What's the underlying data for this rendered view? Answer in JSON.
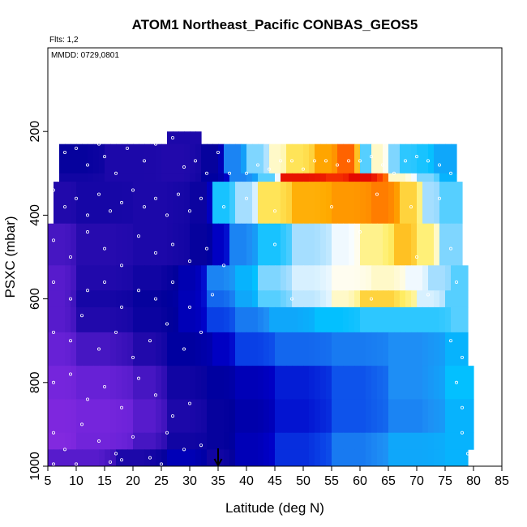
{
  "chart_data": {
    "type": "heatmap",
    "title": "ATOM1 Northeast_Pacific CONBAS_GEOS5",
    "notes": [
      "Flts: 1,2",
      "MMDD: 0729,0801"
    ],
    "xlabel": "Latitude (deg N)",
    "ylabel": "PSXC (mbar)",
    "xlim": [
      5,
      85
    ],
    "ylim": [
      1000,
      0
    ],
    "xticks": [
      "5",
      "10",
      "15",
      "20",
      "25",
      "30",
      "35",
      "40",
      "45",
      "50",
      "55",
      "60",
      "65",
      "70",
      "75",
      "80",
      "85"
    ],
    "yticks": [
      "200",
      "400",
      "600",
      "800",
      "1000"
    ],
    "grid": false,
    "legend": "none",
    "colors": {
      "axis": "#000000",
      "background": "#ffffff",
      "markers": "#ffffff",
      "arrow": "#000000"
    },
    "arrow_marker_latitude": 35,
    "palette_stops": [
      "#8a2be2",
      "#6a22d8",
      "#2a0cb0",
      "#00009a",
      "#0000c8",
      "#0a44e8",
      "#1e8ff5",
      "#00bfff",
      "#9fdcff",
      "#ffffff",
      "#ffee66",
      "#ffaa00",
      "#ff4400",
      "#e00000"
    ],
    "pressure_bands": [
      {
        "p_top": 200,
        "p_bot": 230,
        "cells": [
          [
            26,
            32,
            0.18
          ]
        ]
      },
      {
        "p_top": 230,
        "p_bot": 300,
        "cells": [
          [
            7,
            15,
            0.22
          ],
          [
            15,
            25,
            0.18
          ],
          [
            25,
            32,
            0.17
          ],
          [
            32,
            36,
            0.22
          ],
          [
            36,
            40,
            0.45
          ],
          [
            40,
            44,
            0.6
          ],
          [
            44,
            47,
            0.72
          ],
          [
            47,
            52,
            0.78
          ],
          [
            52,
            56,
            0.85
          ],
          [
            56,
            60,
            0.9
          ],
          [
            60,
            62,
            0.58
          ],
          [
            62,
            65,
            0.72
          ],
          [
            65,
            67,
            0.6
          ],
          [
            67,
            70,
            0.56
          ],
          [
            70,
            73,
            0.55
          ],
          [
            73,
            77,
            0.5
          ]
        ]
      },
      {
        "p_top": 300,
        "p_bot": 320,
        "cells": [
          [
            7,
            15,
            0.2
          ],
          [
            15,
            25,
            0.18
          ],
          [
            25,
            32,
            0.17
          ],
          [
            32,
            37,
            0.24
          ],
          [
            37,
            42,
            0.45
          ],
          [
            42,
            46,
            0.58
          ],
          [
            46,
            54,
            0.98
          ],
          [
            54,
            58,
            0.95
          ],
          [
            58,
            65,
            0.99
          ],
          [
            65,
            70,
            0.72
          ],
          [
            70,
            74,
            0.6
          ],
          [
            74,
            77,
            0.52
          ]
        ]
      },
      {
        "p_top": 320,
        "p_bot": 420,
        "cells": [
          [
            6,
            10,
            0.17
          ],
          [
            10,
            20,
            0.19
          ],
          [
            20,
            30,
            0.18
          ],
          [
            30,
            34,
            0.21
          ],
          [
            34,
            38,
            0.55
          ],
          [
            38,
            42,
            0.62
          ],
          [
            42,
            48,
            0.78
          ],
          [
            48,
            55,
            0.84
          ],
          [
            55,
            62,
            0.86
          ],
          [
            62,
            67,
            0.88
          ],
          [
            67,
            71,
            0.8
          ],
          [
            71,
            74,
            0.62
          ],
          [
            74,
            78,
            0.58
          ]
        ]
      },
      {
        "p_top": 420,
        "p_bot": 520,
        "cells": [
          [
            5,
            10,
            0.12
          ],
          [
            10,
            20,
            0.16
          ],
          [
            20,
            30,
            0.18
          ],
          [
            30,
            34,
            0.22
          ],
          [
            34,
            37,
            0.3
          ],
          [
            37,
            42,
            0.45
          ],
          [
            42,
            48,
            0.55
          ],
          [
            48,
            55,
            0.62
          ],
          [
            55,
            60,
            0.68
          ],
          [
            60,
            66,
            0.75
          ],
          [
            66,
            70,
            0.82
          ],
          [
            70,
            74,
            0.76
          ],
          [
            74,
            78,
            0.6
          ]
        ]
      },
      {
        "p_top": 520,
        "p_bot": 580,
        "cells": [
          [
            5,
            10,
            0.1
          ],
          [
            10,
            20,
            0.17
          ],
          [
            20,
            28,
            0.2
          ],
          [
            28,
            33,
            0.27
          ],
          [
            33,
            38,
            0.45
          ],
          [
            38,
            42,
            0.52
          ],
          [
            42,
            48,
            0.6
          ],
          [
            48,
            55,
            0.66
          ],
          [
            55,
            62,
            0.7
          ],
          [
            62,
            68,
            0.72
          ],
          [
            68,
            72,
            0.68
          ],
          [
            72,
            76,
            0.62
          ],
          [
            76,
            79,
            0.58
          ]
        ]
      },
      {
        "p_top": 580,
        "p_bot": 620,
        "cells": [
          [
            5,
            10,
            0.1
          ],
          [
            10,
            20,
            0.19
          ],
          [
            20,
            28,
            0.22
          ],
          [
            28,
            33,
            0.28
          ],
          [
            33,
            38,
            0.42
          ],
          [
            38,
            42,
            0.5
          ],
          [
            42,
            48,
            0.58
          ],
          [
            48,
            55,
            0.64
          ],
          [
            55,
            60,
            0.72
          ],
          [
            60,
            70,
            0.8
          ],
          [
            70,
            75,
            0.66
          ],
          [
            75,
            79,
            0.58
          ]
        ]
      },
      {
        "p_top": 620,
        "p_bot": 680,
        "cells": [
          [
            5,
            10,
            0.1
          ],
          [
            10,
            20,
            0.17
          ],
          [
            20,
            28,
            0.21
          ],
          [
            28,
            33,
            0.28
          ],
          [
            33,
            38,
            0.38
          ],
          [
            38,
            44,
            0.44
          ],
          [
            44,
            52,
            0.5
          ],
          [
            52,
            60,
            0.54
          ],
          [
            60,
            70,
            0.56
          ],
          [
            70,
            76,
            0.56
          ],
          [
            76,
            79,
            0.58
          ]
        ]
      },
      {
        "p_top": 680,
        "p_bot": 760,
        "cells": [
          [
            5,
            10,
            0.08
          ],
          [
            10,
            20,
            0.12
          ],
          [
            20,
            26,
            0.17
          ],
          [
            26,
            34,
            0.24
          ],
          [
            34,
            38,
            0.3
          ],
          [
            38,
            45,
            0.38
          ],
          [
            45,
            55,
            0.42
          ],
          [
            55,
            65,
            0.44
          ],
          [
            65,
            75,
            0.46
          ],
          [
            75,
            79,
            0.52
          ]
        ]
      },
      {
        "p_top": 760,
        "p_bot": 840,
        "cells": [
          [
            5,
            10,
            0.05
          ],
          [
            10,
            20,
            0.08
          ],
          [
            20,
            26,
            0.12
          ],
          [
            26,
            33,
            0.2
          ],
          [
            33,
            38,
            0.24
          ],
          [
            38,
            45,
            0.28
          ],
          [
            45,
            55,
            0.34
          ],
          [
            55,
            65,
            0.4
          ],
          [
            65,
            75,
            0.46
          ],
          [
            75,
            80,
            0.54
          ]
        ]
      },
      {
        "p_top": 840,
        "p_bot": 920,
        "cells": [
          [
            5,
            10,
            0.03
          ],
          [
            10,
            20,
            0.05
          ],
          [
            20,
            26,
            0.1
          ],
          [
            26,
            33,
            0.18
          ],
          [
            33,
            38,
            0.22
          ],
          [
            38,
            45,
            0.26
          ],
          [
            45,
            55,
            0.33
          ],
          [
            55,
            65,
            0.4
          ],
          [
            65,
            75,
            0.45
          ],
          [
            75,
            80,
            0.52
          ]
        ]
      },
      {
        "p_top": 920,
        "p_bot": 960,
        "cells": [
          [
            5,
            10,
            0.02
          ],
          [
            10,
            20,
            0.06
          ],
          [
            20,
            26,
            0.12
          ],
          [
            26,
            33,
            0.2
          ],
          [
            33,
            38,
            0.22
          ],
          [
            38,
            45,
            0.28
          ],
          [
            45,
            55,
            0.36
          ],
          [
            55,
            65,
            0.44
          ],
          [
            65,
            75,
            0.5
          ],
          [
            75,
            80,
            0.52
          ]
        ]
      },
      {
        "p_top": 960,
        "p_bot": 1000,
        "cells": [
          [
            5,
            10,
            0.1
          ],
          [
            10,
            17,
            0.1
          ],
          [
            17,
            26,
            0.18
          ],
          [
            26,
            33,
            0.28
          ],
          [
            33,
            38,
            0.2
          ],
          [
            38,
            45,
            0.28
          ],
          [
            45,
            55,
            0.36
          ],
          [
            55,
            65,
            0.44
          ],
          [
            65,
            75,
            0.5
          ],
          [
            75,
            79,
            0.52
          ]
        ]
      }
    ],
    "sample_points": [
      [
        8,
        250
      ],
      [
        10,
        240
      ],
      [
        12,
        280
      ],
      [
        14,
        230
      ],
      [
        15,
        260
      ],
      [
        17,
        300
      ],
      [
        19,
        240
      ],
      [
        22,
        270
      ],
      [
        24,
        230
      ],
      [
        27,
        215
      ],
      [
        29,
        285
      ],
      [
        31,
        270
      ],
      [
        33,
        300
      ],
      [
        35,
        250
      ],
      [
        37,
        300
      ],
      [
        40,
        300
      ],
      [
        42,
        280
      ],
      [
        44,
        290
      ],
      [
        46,
        270
      ],
      [
        48,
        270
      ],
      [
        50,
        290
      ],
      [
        52,
        270
      ],
      [
        54,
        270
      ],
      [
        56,
        280
      ],
      [
        58,
        270
      ],
      [
        60,
        270
      ],
      [
        62,
        260
      ],
      [
        64,
        280
      ],
      [
        66,
        300
      ],
      [
        68,
        270
      ],
      [
        70,
        260
      ],
      [
        72,
        270
      ],
      [
        74,
        280
      ],
      [
        76,
        300
      ],
      [
        6,
        340
      ],
      [
        8,
        380
      ],
      [
        10,
        360
      ],
      [
        12,
        400
      ],
      [
        14,
        350
      ],
      [
        16,
        390
      ],
      [
        18,
        370
      ],
      [
        20,
        340
      ],
      [
        22,
        380
      ],
      [
        24,
        360
      ],
      [
        26,
        400
      ],
      [
        28,
        350
      ],
      [
        30,
        390
      ],
      [
        32,
        360
      ],
      [
        36,
        380
      ],
      [
        40,
        360
      ],
      [
        45,
        390
      ],
      [
        55,
        380
      ],
      [
        63,
        350
      ],
      [
        69,
        380
      ],
      [
        74,
        360
      ],
      [
        6,
        460
      ],
      [
        9,
        500
      ],
      [
        12,
        440
      ],
      [
        15,
        480
      ],
      [
        18,
        520
      ],
      [
        21,
        450
      ],
      [
        24,
        490
      ],
      [
        27,
        470
      ],
      [
        30,
        510
      ],
      [
        33,
        480
      ],
      [
        36,
        520
      ],
      [
        45,
        470
      ],
      [
        60,
        440
      ],
      [
        70,
        500
      ],
      [
        76,
        480
      ],
      [
        6,
        560
      ],
      [
        9,
        600
      ],
      [
        12,
        580
      ],
      [
        15,
        560
      ],
      [
        18,
        620
      ],
      [
        21,
        580
      ],
      [
        24,
        600
      ],
      [
        27,
        560
      ],
      [
        30,
        620
      ],
      [
        34,
        590
      ],
      [
        48,
        600
      ],
      [
        62,
        600
      ],
      [
        72,
        590
      ],
      [
        77,
        560
      ],
      [
        6,
        680
      ],
      [
        9,
        700
      ],
      [
        11,
        640
      ],
      [
        14,
        720
      ],
      [
        17,
        680
      ],
      [
        20,
        740
      ],
      [
        23,
        700
      ],
      [
        26,
        660
      ],
      [
        29,
        720
      ],
      [
        32,
        680
      ],
      [
        76,
        700
      ],
      [
        78,
        740
      ],
      [
        6,
        800
      ],
      [
        9,
        780
      ],
      [
        12,
        840
      ],
      [
        15,
        810
      ],
      [
        18,
        860
      ],
      [
        21,
        790
      ],
      [
        24,
        830
      ],
      [
        27,
        880
      ],
      [
        30,
        850
      ],
      [
        77,
        800
      ],
      [
        78,
        860
      ],
      [
        6,
        920
      ],
      [
        8,
        960
      ],
      [
        11,
        900
      ],
      [
        14,
        940
      ],
      [
        17,
        970
      ],
      [
        20,
        930
      ],
      [
        23,
        980
      ],
      [
        26,
        920
      ],
      [
        29,
        960
      ],
      [
        32,
        950
      ],
      [
        78,
        920
      ],
      [
        79,
        970
      ],
      [
        6,
        995
      ],
      [
        10,
        995
      ],
      [
        16,
        990
      ],
      [
        18,
        985
      ],
      [
        25,
        995
      ]
    ]
  }
}
